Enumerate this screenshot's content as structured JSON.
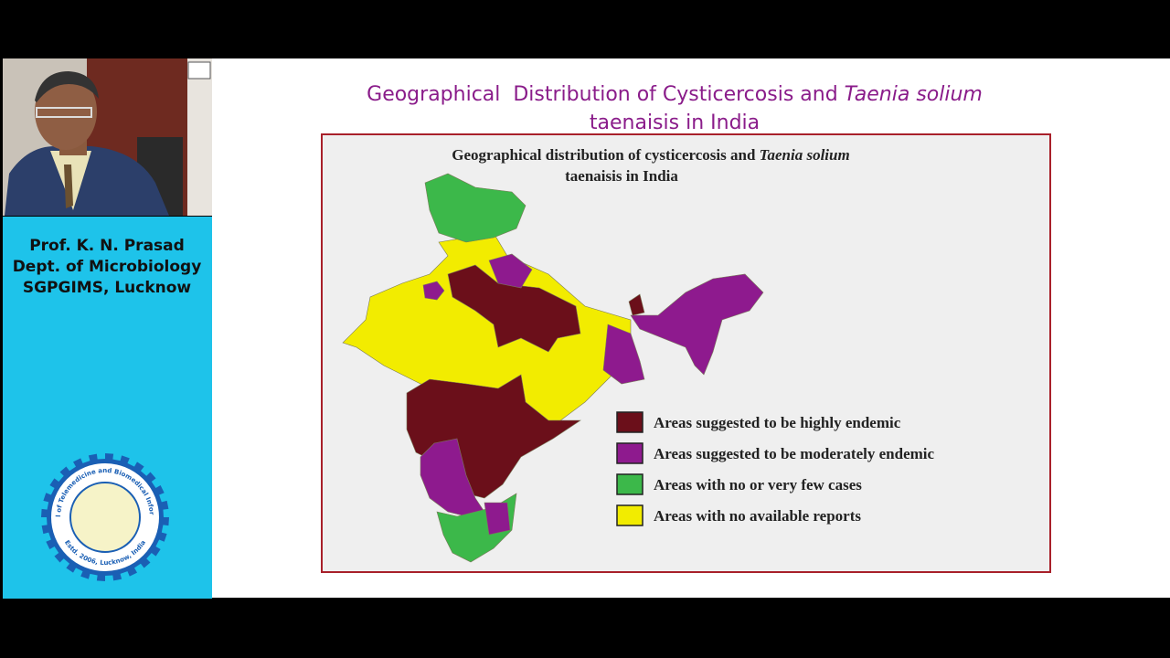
{
  "presenter": {
    "lines": [
      "Prof. K. N. Prasad",
      "Dept. of Microbiology",
      "SGPGIMS, Lucknow"
    ]
  },
  "logo": {
    "ring_top": "School of Telemedicine and Biomedical Informatics",
    "ring_bottom": "Estd. 2006, Lucknow, India"
  },
  "slide": {
    "title": {
      "line1": "Geographical  Distribution of Cysticercosis and ",
      "line1_italic": "Taenia solium",
      "line2": "taenaisis in India"
    },
    "figure": {
      "title": {
        "line1": "Geographical distribution of cysticercosis and ",
        "line1_italic": "Taenia solium",
        "line2": "taenaisis in India"
      },
      "legend": [
        {
          "label": "Areas suggested to be highly endemic",
          "color": "#6b0f1a"
        },
        {
          "label": "Areas suggested to be moderately endemic",
          "color": "#8e1a8e"
        },
        {
          "label": "Areas with no or very few cases",
          "color": "#3cb84a"
        },
        {
          "label": "Areas with no available reports",
          "color": "#f2ec00"
        }
      ]
    }
  }
}
